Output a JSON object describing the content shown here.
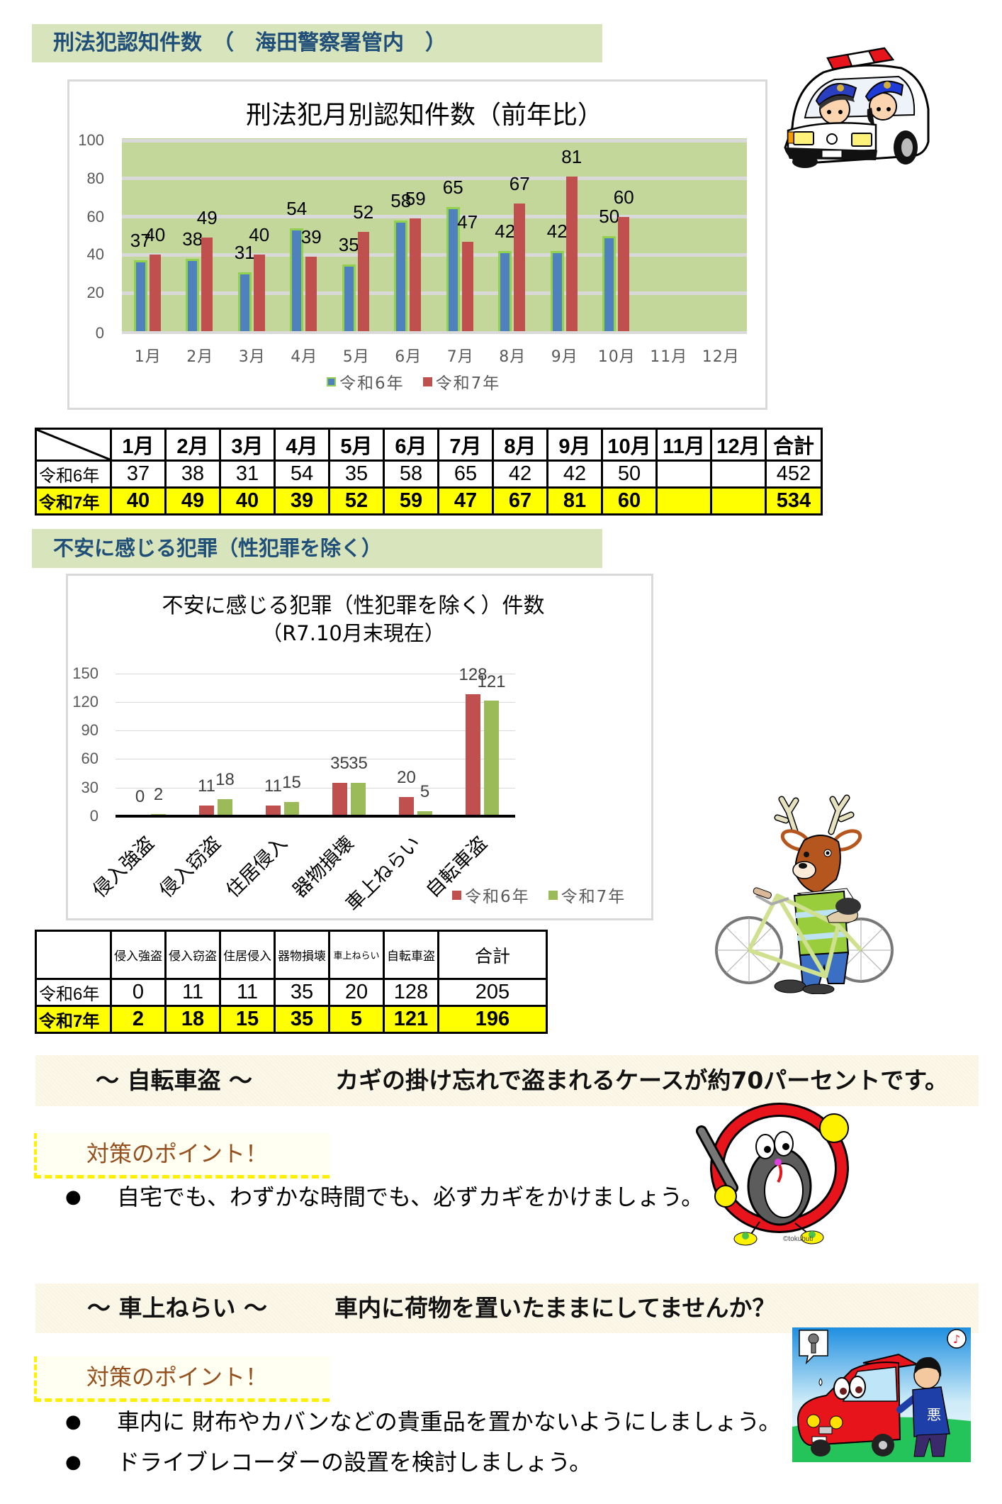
{
  "colors": {
    "section_header_bg": "#D8E4BC",
    "section_header_text": "#1F4E79",
    "chart1_plot_bg": "#C4D79B",
    "table_highlight_row": "#FFFF00",
    "point_heading_text": "#94501E",
    "point_box_dash": "#FFF000"
  },
  "section1": {
    "header": "刑法犯認知件数　（　海田警察署管内　）"
  },
  "section2": {
    "header": "不安に感じる犯罪（性犯罪を除く）"
  },
  "chart_data": [
    {
      "type": "bar",
      "title": "刑法犯月別認知件数（前年比）",
      "xlabel": "",
      "ylabel": "",
      "categories": [
        "1月",
        "2月",
        "3月",
        "4月",
        "5月",
        "6月",
        "7月",
        "8月",
        "9月",
        "10月",
        "11月",
        "12月"
      ],
      "series": [
        {
          "name": "令和6年",
          "values": [
            37,
            38,
            31,
            54,
            35,
            58,
            65,
            42,
            42,
            50,
            null,
            null
          ],
          "color": "#4F81BD",
          "border_color": "#92D050"
        },
        {
          "name": "令和7年",
          "values": [
            40,
            49,
            40,
            39,
            52,
            59,
            47,
            67,
            81,
            60,
            null,
            null
          ],
          "color": "#C0504D"
        }
      ],
      "ylim": [
        0,
        100
      ],
      "yticks": [
        0,
        20,
        40,
        60,
        80,
        100
      ],
      "grid": true,
      "data_labels": true,
      "legend_position": "bottom",
      "plot_background": "#C4D79B"
    },
    {
      "type": "bar",
      "title": "不安に感じる犯罪（性犯罪を除く）件数",
      "subtitle": "（R7.10月末現在）",
      "xlabel": "",
      "ylabel": "",
      "categories": [
        "侵入強盗",
        "侵入窃盗",
        "住居侵入",
        "器物損壊",
        "車上ねらい",
        "自転車盗"
      ],
      "series": [
        {
          "name": "令和6年",
          "values": [
            0,
            11,
            11,
            35,
            20,
            128
          ],
          "color": "#C0504D"
        },
        {
          "name": "令和7年",
          "values": [
            2,
            18,
            15,
            35,
            5,
            121
          ],
          "color": "#9BBB59"
        }
      ],
      "ylim": [
        0,
        150
      ],
      "yticks": [
        0,
        30,
        60,
        90,
        120,
        150
      ],
      "grid": true,
      "data_labels": true,
      "legend_position": "bottom-right",
      "x_label_rotation": -45
    }
  ],
  "table1": {
    "columns": [
      "1月",
      "2月",
      "3月",
      "4月",
      "5月",
      "6月",
      "7月",
      "8月",
      "9月",
      "10月",
      "11月",
      "12月",
      "合計"
    ],
    "rows": [
      {
        "label": "令和6年",
        "values": [
          "37",
          "38",
          "31",
          "54",
          "35",
          "58",
          "65",
          "42",
          "42",
          "50",
          "",
          "",
          "452"
        ]
      },
      {
        "label": "令和7年",
        "values": [
          "40",
          "49",
          "40",
          "39",
          "52",
          "59",
          "47",
          "67",
          "81",
          "60",
          "",
          "",
          "534"
        ]
      }
    ]
  },
  "table2": {
    "columns": [
      "侵入強盗",
      "侵入窃盗",
      "住居侵入",
      "器物損壊",
      "車上ねらい",
      "自転車盗",
      "合計"
    ],
    "rows": [
      {
        "label": "令和6年",
        "values": [
          "0",
          "11",
          "11",
          "35",
          "20",
          "128",
          "205"
        ]
      },
      {
        "label": "令和7年",
        "values": [
          "2",
          "18",
          "15",
          "35",
          "5",
          "121",
          "196"
        ]
      }
    ]
  },
  "tips": [
    {
      "topic": "～ 自転車盗 ～",
      "message": "カギの掛け忘れで盗まれるケースが約70パーセントです。",
      "point_heading": "対策のポイント！",
      "bullet_glyph": "●",
      "bullets": [
        "自宅でも、わずかな時間でも、必ずカギをかけましょう。"
      ]
    },
    {
      "topic": "～ 車上ねらい ～",
      "message": "車内に荷物を置いたままにしてませんか？",
      "point_heading": "対策のポイント！",
      "bullet_glyph": "●",
      "bullets": [
        "車内に 財布やカバンなどの貴重品を置かないようにしましょう。",
        "ドライブレコーダーの設置を検討しましょう。"
      ]
    }
  ],
  "illustrations": {
    "police_car": {
      "icon": "police-car-with-officers"
    },
    "deer_bicycle": {
      "icon": "deer-mascot-with-bicycle"
    },
    "bike_lock": {
      "icon": "bicycle-lock-character",
      "credit": "©tokubuti"
    },
    "car_breakin": {
      "icon": "car-break-in-scene",
      "jacket_text": "悪",
      "note_glyph": "♪"
    }
  }
}
